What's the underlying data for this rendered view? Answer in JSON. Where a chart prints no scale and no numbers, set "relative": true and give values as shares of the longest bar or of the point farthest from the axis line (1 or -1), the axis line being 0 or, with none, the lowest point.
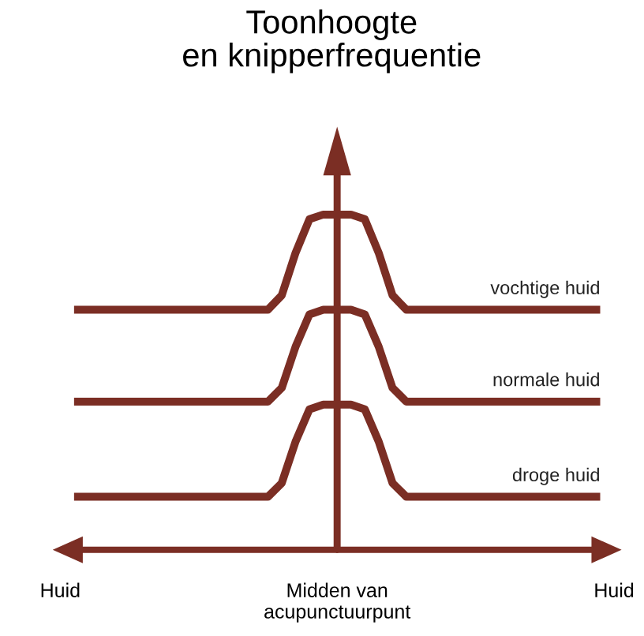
{
  "chart_data": {
    "type": "line",
    "title": "Toonhoogte\nen knipperfrequentie",
    "relative": true,
    "line_style": "solid",
    "categories": [
      "Huid",
      null,
      null,
      null,
      null,
      null,
      null,
      null,
      null,
      null,
      null,
      null,
      null,
      null,
      null,
      null,
      null,
      null,
      null,
      null,
      "Midden van\nacupunctuurpunt",
      null,
      null,
      null,
      null,
      null,
      null,
      null,
      null,
      null,
      null,
      null,
      null,
      null,
      null,
      null,
      null,
      null,
      null,
      null,
      "Huid"
    ],
    "series": [
      {
        "name": "vochtige huid",
        "color": "#7b2e24",
        "values": [
          null,
          0.716,
          0.716,
          0.716,
          0.716,
          0.716,
          0.716,
          0.716,
          0.716,
          0.716,
          0.716,
          0.716,
          0.716,
          0.716,
          0.716,
          0.716,
          0.759,
          0.886,
          0.986,
          1,
          1,
          1,
          0.986,
          0.886,
          0.759,
          0.716,
          0.716,
          0.716,
          0.716,
          0.716,
          0.716,
          0.716,
          0.716,
          0.716,
          0.716,
          0.716,
          0.716,
          0.716,
          0.716,
          0.716,
          null
        ]
      },
      {
        "name": "normale huid",
        "color": "#7b2e24",
        "values": [
          null,
          0.442,
          0.442,
          0.442,
          0.442,
          0.442,
          0.442,
          0.442,
          0.442,
          0.442,
          0.442,
          0.442,
          0.442,
          0.442,
          0.442,
          0.442,
          0.483,
          0.606,
          0.702,
          0.716,
          0.716,
          0.716,
          0.702,
          0.606,
          0.483,
          0.442,
          0.442,
          0.442,
          0.442,
          0.442,
          0.442,
          0.442,
          0.442,
          0.442,
          0.442,
          0.442,
          0.442,
          0.442,
          0.442,
          0.442,
          null
        ]
      },
      {
        "name": "droge huid",
        "color": "#7b2e24",
        "values": [
          null,
          0.158,
          0.158,
          0.158,
          0.158,
          0.158,
          0.158,
          0.158,
          0.158,
          0.158,
          0.158,
          0.158,
          0.158,
          0.158,
          0.158,
          0.158,
          0.199,
          0.323,
          0.419,
          0.433,
          0.433,
          0.433,
          0.419,
          0.323,
          0.199,
          0.158,
          0.158,
          0.158,
          0.158,
          0.158,
          0.158,
          0.158,
          0.158,
          0.158,
          0.158,
          0.158,
          0.158,
          0.158,
          0.158,
          0.158,
          null
        ]
      }
    ]
  }
}
